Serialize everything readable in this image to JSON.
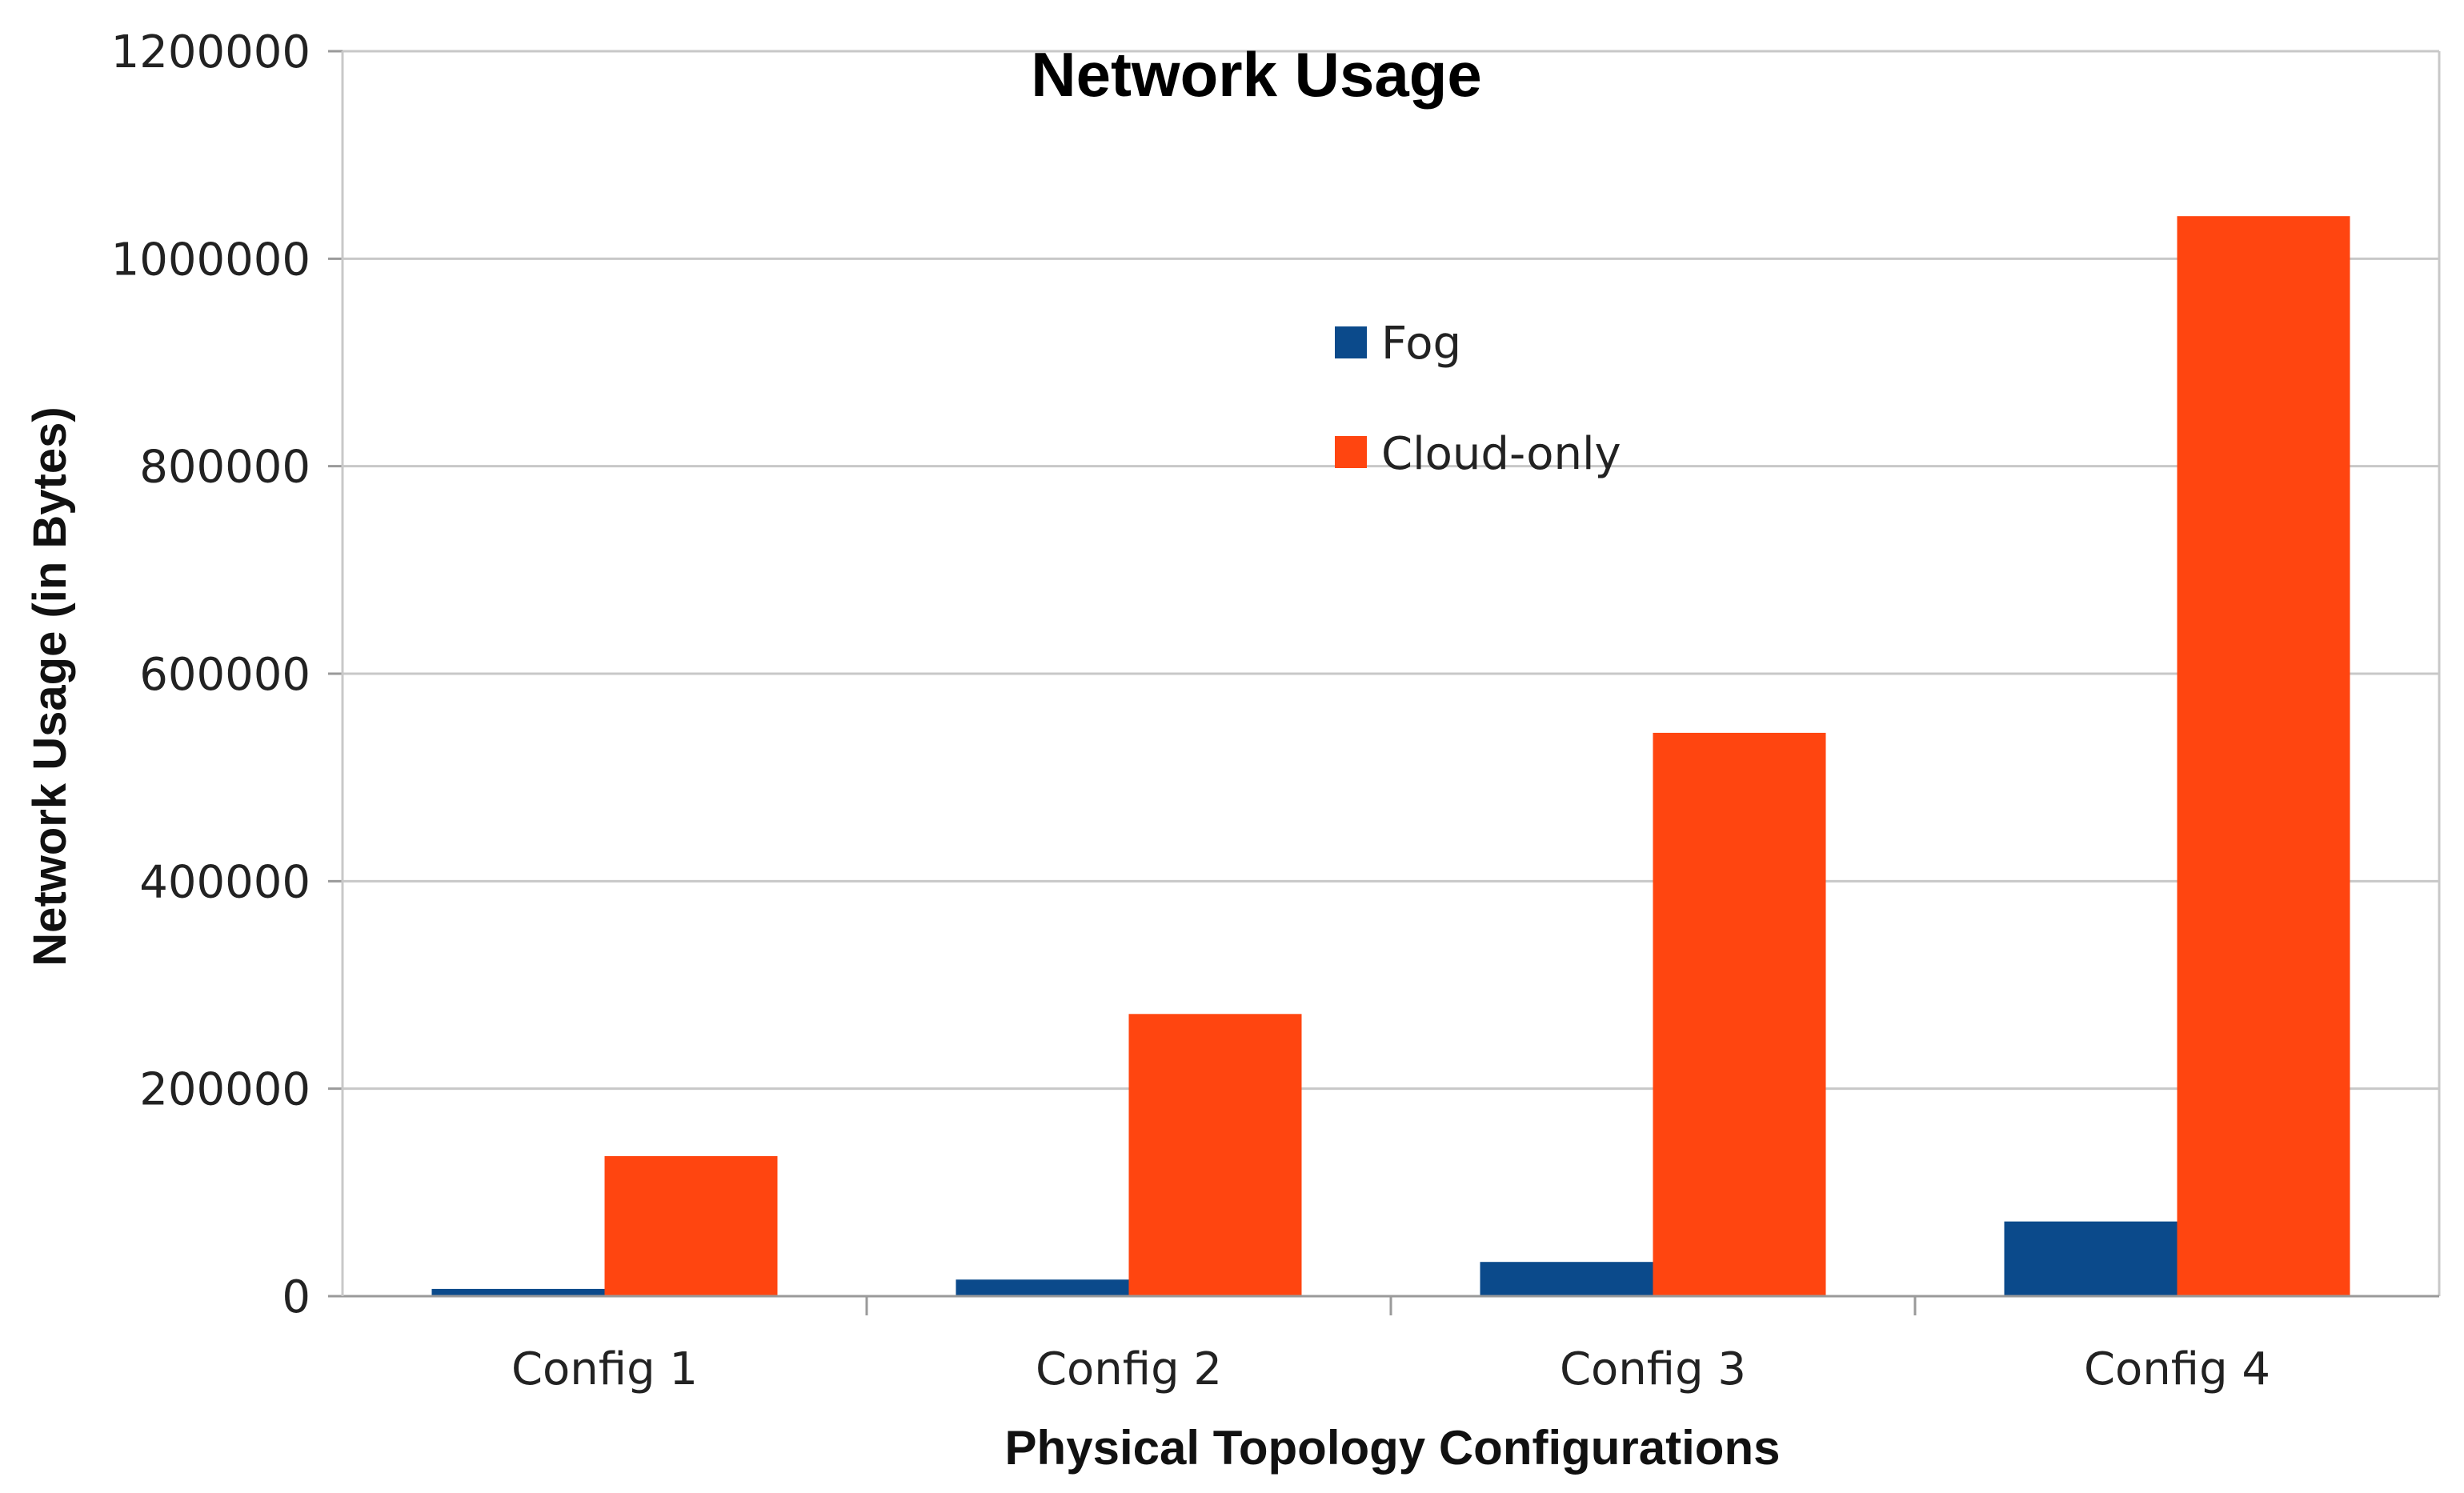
{
  "chart_data": {
    "type": "bar",
    "title": "Network Usage",
    "xlabel": "Physical Topology Configurations",
    "ylabel": "Network Usage (in Bytes)",
    "categories": [
      "Config 1",
      "Config 2",
      "Config 3",
      "Config 4"
    ],
    "series": [
      {
        "name": "Fog",
        "color": "#0b4a8b",
        "values": [
          7000,
          16000,
          33000,
          72000
        ]
      },
      {
        "name": "Cloud-only",
        "color": "#ff4510",
        "values": [
          135000,
          272000,
          543000,
          1041000
        ]
      }
    ],
    "ylim": [
      0,
      1200000
    ],
    "yticks": [
      "0",
      "200000",
      "400000",
      "600000",
      "800000",
      "1000000",
      "1200000"
    ],
    "grid": true,
    "legend_position": "top-center"
  }
}
